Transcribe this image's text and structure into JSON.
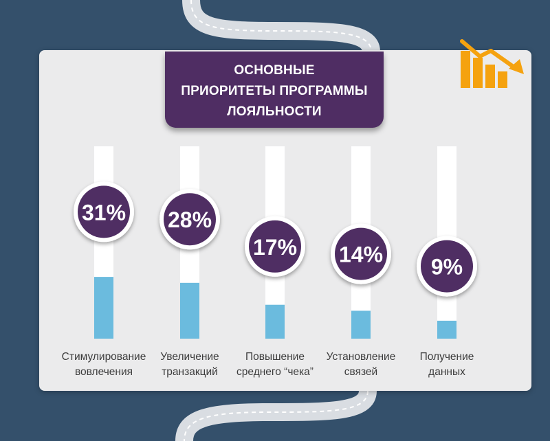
{
  "title": {
    "line1": "ОСНОВНЫЕ",
    "line2": "ПРИОРИТЕТЫ ПРОГРАММЫ",
    "line3": "ЛОЯЛЬНОСТИ"
  },
  "colors": {
    "background": "#34506b",
    "card": "#ebebec",
    "banner": "#4f2d63",
    "bar_track": "#ffffff",
    "bar_fill": "#6bbbde",
    "badge": "#4f2d63",
    "logo": "#f5a20f"
  },
  "icons": [
    "decline-chart-logo-icon"
  ],
  "chart_data": {
    "type": "bar",
    "orientation": "vertical",
    "title": "ОСНОВНЫЕ ПРИОРИТЕТЫ ПРОГРАММЫ ЛОЯЛЬНОСТИ",
    "categories": [
      [
        "Стимулирование",
        "вовлечения"
      ],
      [
        "Увеличение",
        "транзакций"
      ],
      [
        "Повышение",
        "среднего “чека”"
      ],
      [
        "Установление",
        "связей"
      ],
      [
        "Получение",
        "данных"
      ]
    ],
    "values": [
      31,
      28,
      17,
      14,
      9
    ],
    "value_labels": [
      "31%",
      "28%",
      "17%",
      "14%",
      "9%"
    ],
    "unit": "%",
    "grid": false,
    "legend": "none"
  }
}
